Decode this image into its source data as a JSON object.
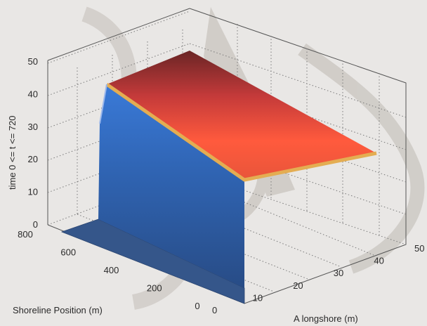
{
  "chart_data": {
    "type": "surface",
    "ylabel": "time 0 <= t <= 720",
    "xlabel": "Shoreline Position (m)",
    "zlabel": "A longshore (m)",
    "xlim": [
      0,
      800
    ],
    "ylim": [
      0,
      50
    ],
    "zlim": [
      0,
      50
    ],
    "x_ticks": [
      0,
      200,
      400,
      600,
      800
    ],
    "y_ticks": [
      0,
      10,
      20,
      30,
      40,
      50
    ],
    "z_ticks": [
      0,
      10,
      20,
      30,
      40,
      50
    ],
    "grid": true,
    "surface": {
      "description_points": [
        {
          "shoreline": 0,
          "time": 0,
          "alongshore": 0
        },
        {
          "shoreline": 800,
          "time": 0,
          "alongshore": 0
        }
      ],
      "colors": [
        "#2f4f86",
        "#3a78d8",
        "#e8543a",
        "#d8a64a",
        "#7a2a2a"
      ]
    }
  },
  "colors": {
    "background": "#e9e7e5",
    "low": "#35568a",
    "mid": "#3b7fe0",
    "high": "#f0533a",
    "top": "#6c2626",
    "edge": "#e4ad52"
  }
}
